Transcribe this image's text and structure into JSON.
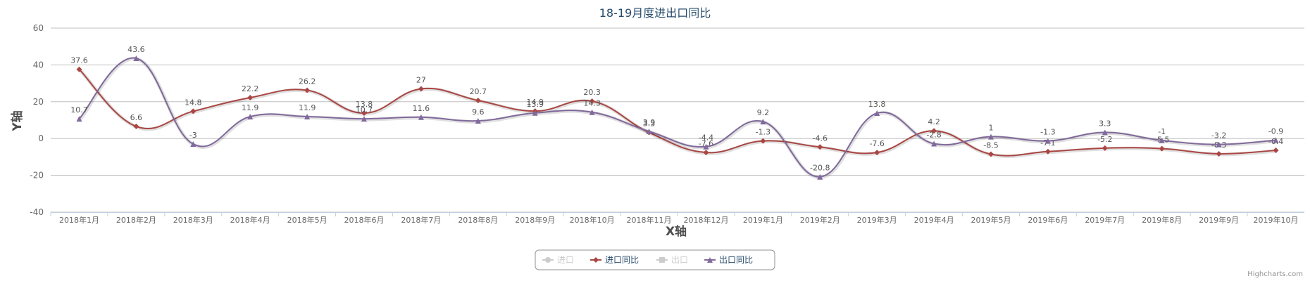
{
  "chart_data": {
    "type": "line",
    "title": "18-19月度进出口同比",
    "x_label": "X轴",
    "y_label": "Y轴",
    "credits": "Highcharts.com",
    "categories": [
      "2018年1月",
      "2018年2月",
      "2018年3月",
      "2018年4月",
      "2018年5月",
      "2018年6月",
      "2018年7月",
      "2018年8月",
      "2018年9月",
      "2018年10月",
      "2018年11月",
      "2018年12月",
      "2019年1月",
      "2019年2月",
      "2019年3月",
      "2019年4月",
      "2019年5月",
      "2019年6月",
      "2019年7月",
      "2019年8月",
      "2019年9月",
      "2019年10月"
    ],
    "series": [
      {
        "name": "进口",
        "color": "#cccccc",
        "visible": false,
        "marker": "circle"
      },
      {
        "name": "进口同比",
        "color": "#aa4643",
        "visible": true,
        "marker": "diamond",
        "values": [
          37.6,
          6.6,
          14.8,
          22.2,
          26.2,
          13.8,
          27,
          20.7,
          14.9,
          20.3,
          3.3,
          -7.6,
          -1.3,
          -4.6,
          -7.6,
          4.2,
          -8.5,
          -7.1,
          -5.2,
          -5.5,
          -8.3,
          -6.4
        ]
      },
      {
        "name": "出口",
        "color": "#cccccc",
        "visible": false,
        "marker": "square"
      },
      {
        "name": "出口同比",
        "color": "#80699b",
        "visible": true,
        "marker": "triangle",
        "values": [
          10.7,
          43.6,
          -3,
          11.9,
          11.9,
          10.7,
          11.6,
          9.6,
          13.9,
          14.3,
          3.9,
          -4.4,
          9.2,
          -20.8,
          13.8,
          -2.8,
          1,
          -1.3,
          3.3,
          -1,
          -3.2,
          -0.9
        ]
      }
    ],
    "ylim": [
      -40,
      60
    ],
    "yticks": [
      -40,
      -20,
      0,
      20,
      40,
      60
    ],
    "grid": true
  }
}
